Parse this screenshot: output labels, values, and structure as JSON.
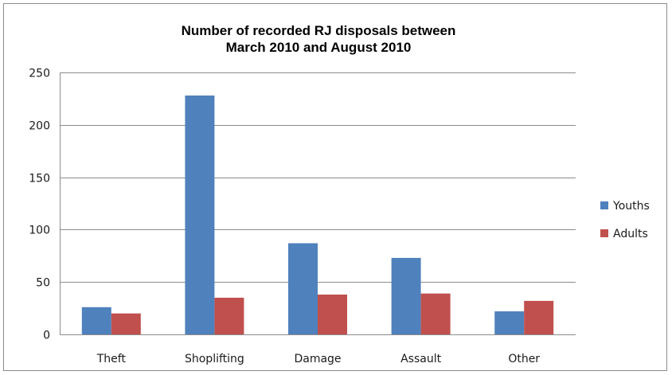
{
  "chart_data": {
    "type": "bar",
    "title_line1": "Number of recorded RJ disposals between",
    "title_line2": "March 2010 and August 2010",
    "xlabel": "",
    "ylabel": "",
    "categories": [
      "Theft",
      "Shoplifting",
      "Damage",
      "Assault",
      "Other"
    ],
    "series": [
      {
        "name": "Youths",
        "color": "#4f81bd",
        "values": [
          26,
          228,
          87,
          73,
          22
        ]
      },
      {
        "name": "Adults",
        "color": "#c0504d",
        "values": [
          20,
          35,
          38,
          39,
          32
        ]
      }
    ],
    "ylim": [
      0,
      250
    ],
    "yticks": [
      0,
      50,
      100,
      150,
      200,
      250
    ],
    "grid": true,
    "legend": "right"
  }
}
